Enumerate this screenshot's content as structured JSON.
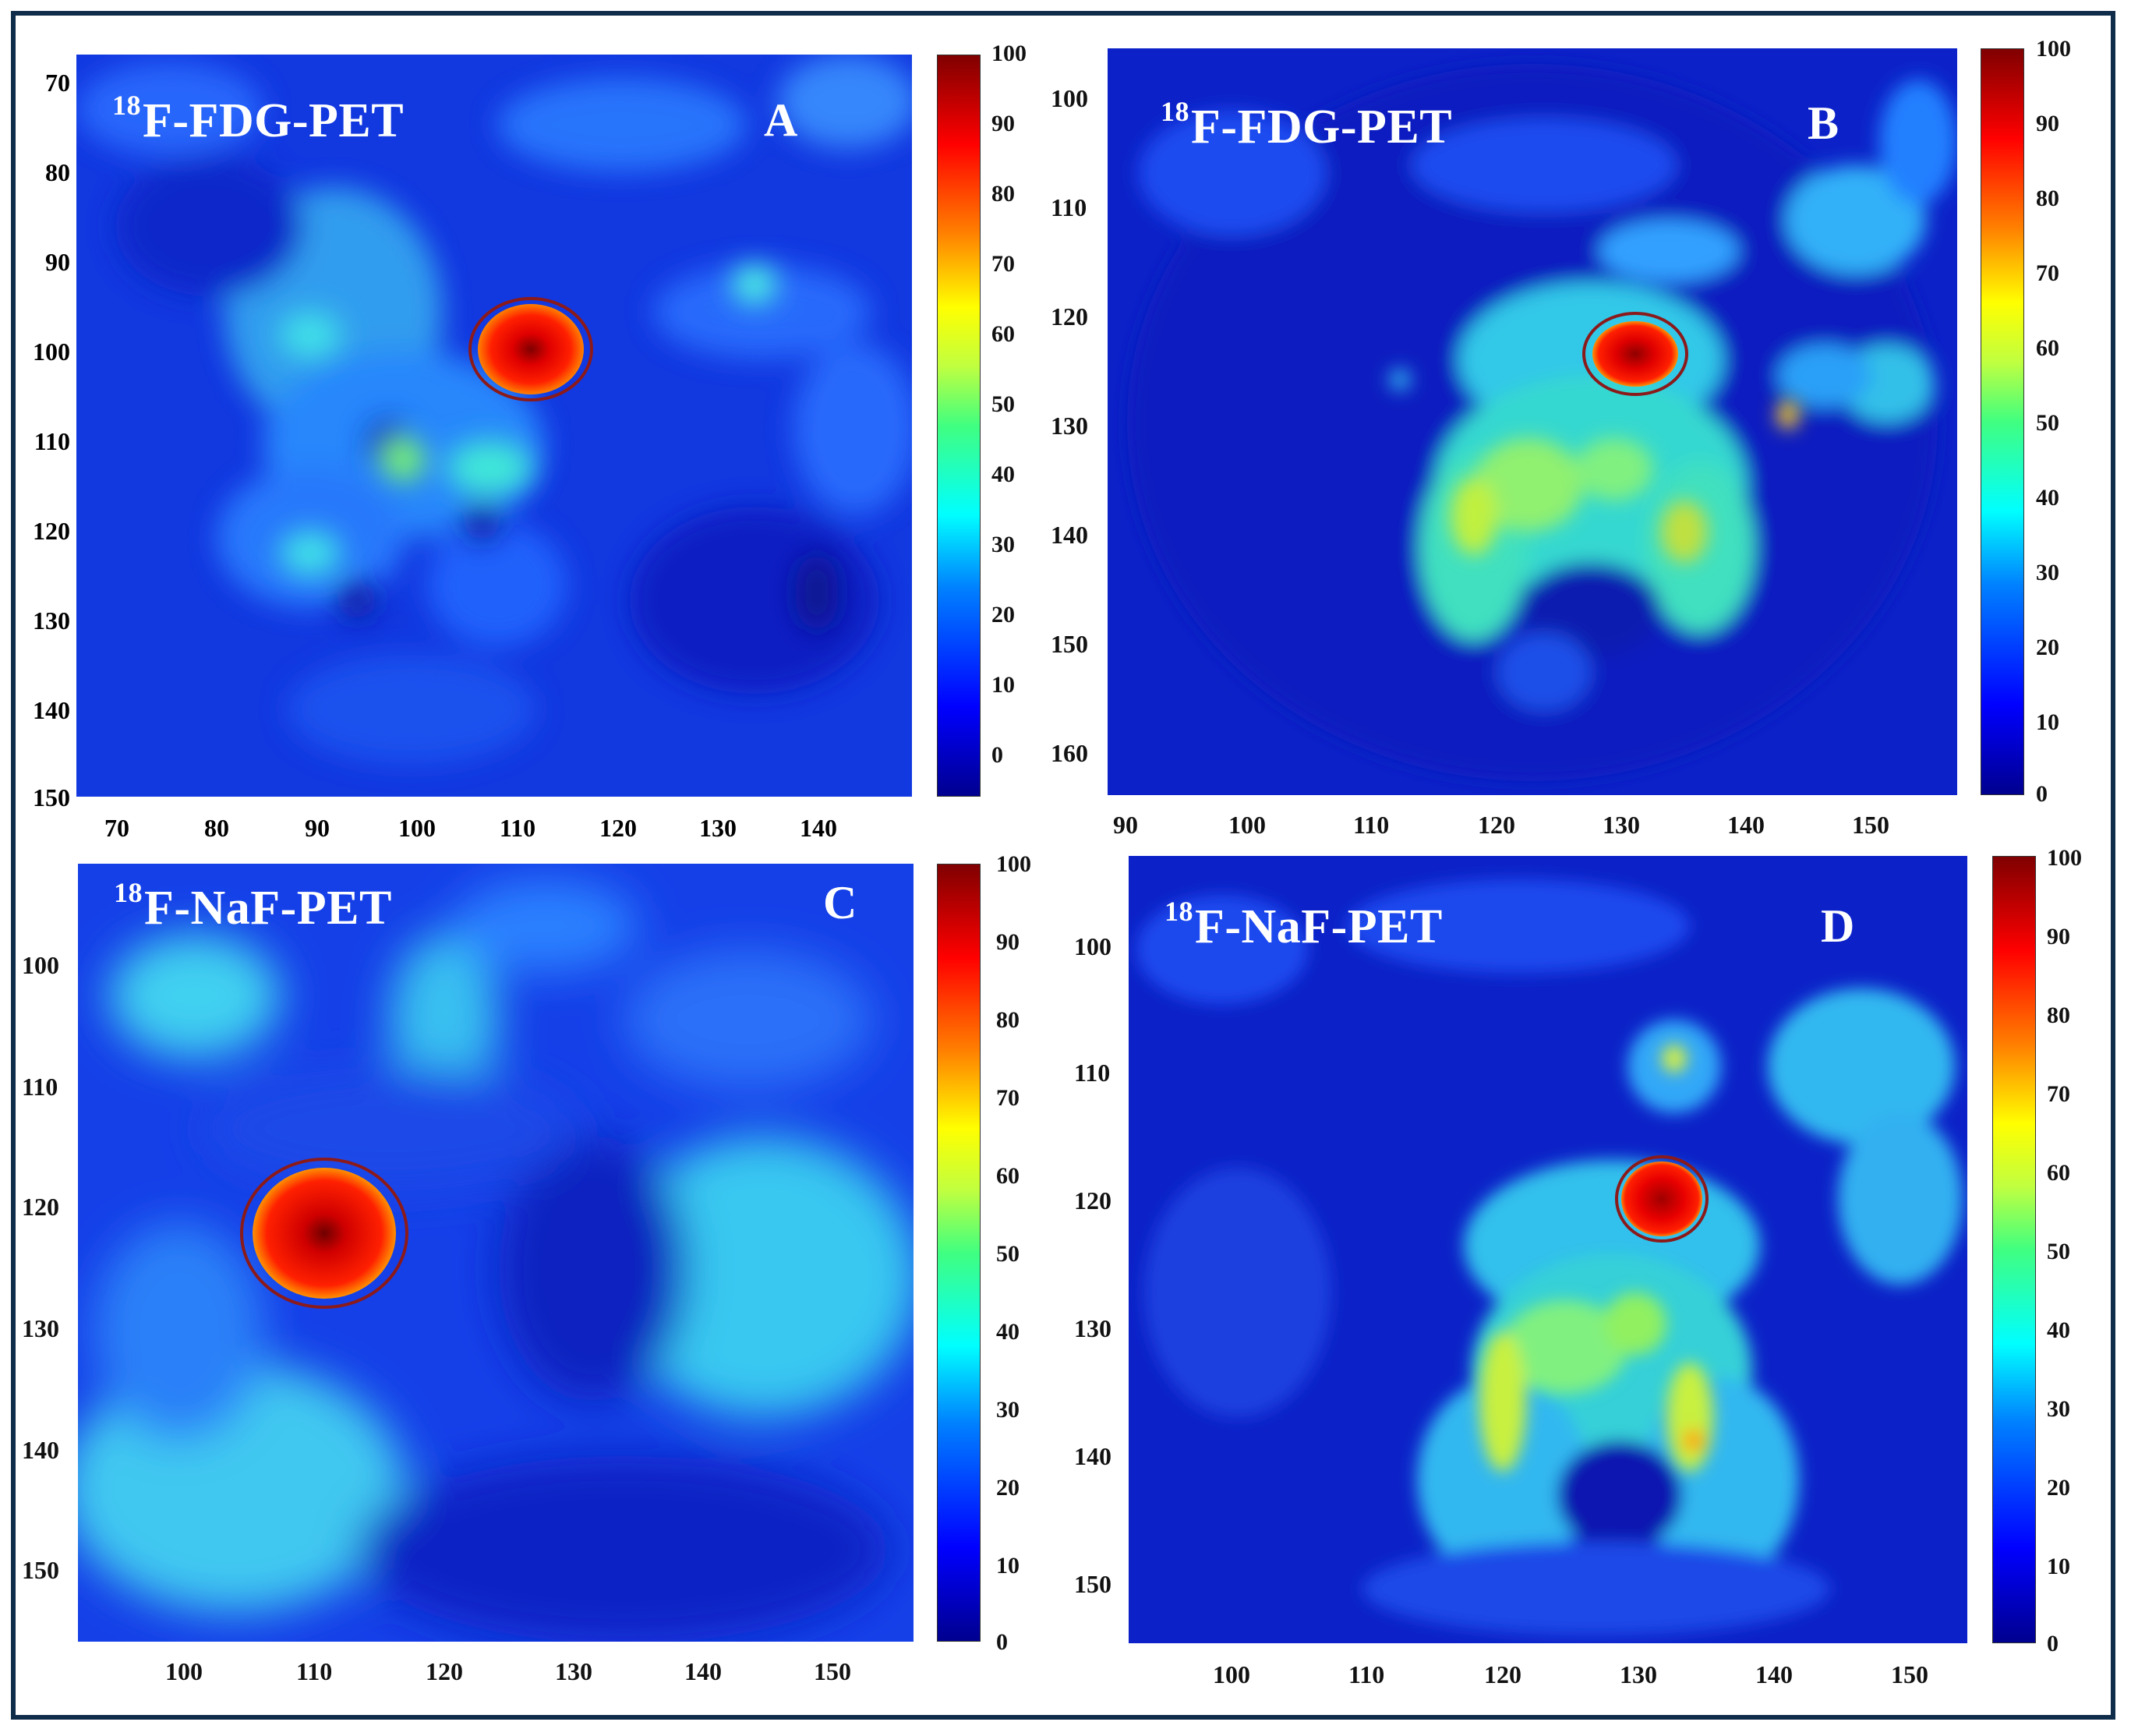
{
  "panels": [
    {
      "id": "A",
      "title_sup": "18",
      "title_main": "F-FDG-PET",
      "letter": "A",
      "y_ticks": [
        "70",
        "80",
        "90",
        "100",
        "110",
        "120",
        "130",
        "140",
        "150"
      ],
      "x_ticks": [
        "70",
        "80",
        "90",
        "100",
        "110",
        "120",
        "130",
        "140"
      ],
      "colorbar_ticks": [
        "100",
        "90",
        "80",
        "70",
        "60",
        "50",
        "40",
        "30",
        "20",
        "10",
        "0"
      ]
    },
    {
      "id": "B",
      "title_sup": "18",
      "title_main": "F-FDG-PET",
      "letter": "B",
      "y_ticks": [
        "100",
        "110",
        "120",
        "130",
        "140",
        "150",
        "160"
      ],
      "x_ticks": [
        "90",
        "100",
        "110",
        "120",
        "130",
        "140",
        "150"
      ],
      "colorbar_ticks": [
        "100",
        "90",
        "80",
        "70",
        "60",
        "50",
        "40",
        "30",
        "20",
        "10",
        "0"
      ]
    },
    {
      "id": "C",
      "title_sup": "18",
      "title_main": "F-NaF-PET",
      "letter": "C",
      "y_ticks": [
        "100",
        "110",
        "120",
        "130",
        "140",
        "150"
      ],
      "x_ticks": [
        "100",
        "110",
        "120",
        "130",
        "140",
        "150"
      ],
      "colorbar_ticks": [
        "100",
        "90",
        "80",
        "70",
        "60",
        "50",
        "40",
        "30",
        "20",
        "10",
        "0"
      ]
    },
    {
      "id": "D",
      "title_sup": "18",
      "title_main": "F-NaF-PET",
      "letter": "D",
      "y_ticks": [
        "100",
        "110",
        "120",
        "130",
        "140",
        "150"
      ],
      "x_ticks": [
        "100",
        "110",
        "120",
        "130",
        "140",
        "150"
      ],
      "colorbar_ticks": [
        "100",
        "90",
        "80",
        "70",
        "60",
        "50",
        "40",
        "30",
        "20",
        "10",
        "0"
      ]
    }
  ],
  "colors": {
    "background_blue": "#1030d8",
    "lesion_red": "#ff1a00",
    "lesion_core": "#a00000",
    "roi_circle": "#8b1a1a",
    "frame": "#0f2c4a"
  },
  "colormap": "jet"
}
